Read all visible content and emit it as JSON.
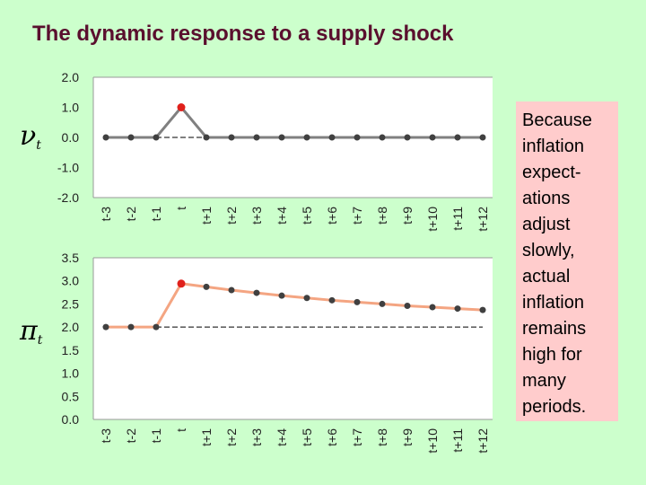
{
  "slide": {
    "title": "The dynamic response to a supply shock",
    "note": "Because inflation expect- ations adjust slowly, actual inflation remains high for many periods."
  },
  "colors": {
    "background": "#ccffcc",
    "title": "#5a0f2e",
    "shock_line": "#808080",
    "inflation_line": "#f4a582",
    "marker": "#404040",
    "highlight_marker": "#e0201b",
    "note_background": "#ffcccc"
  },
  "chart_data": [
    {
      "type": "line",
      "ylabel": "νt",
      "ylabel_main": "ν",
      "ylabel_sub": "t",
      "categories": [
        "t-3",
        "t-2",
        "t-1",
        "t",
        "t+1",
        "t+2",
        "t+3",
        "t+4",
        "t+5",
        "t+6",
        "t+7",
        "t+8",
        "t+9",
        "t+10",
        "t+11",
        "t+12"
      ],
      "values": [
        0,
        0,
        0,
        1,
        0,
        0,
        0,
        0,
        0,
        0,
        0,
        0,
        0,
        0,
        0,
        0
      ],
      "highlight_index": 3,
      "ylim": [
        -2,
        2
      ],
      "yticks": [
        2.0,
        1.0,
        0.0,
        -1.0,
        -2.0
      ],
      "yticklabels": [
        "2.0",
        "1.0",
        "0.0",
        "-1.0",
        "-2.0"
      ],
      "reference_line": 0,
      "grid": false
    },
    {
      "type": "line",
      "ylabel": "πt",
      "ylabel_main": "π",
      "ylabel_sub": "t",
      "categories": [
        "t-3",
        "t-2",
        "t-1",
        "t",
        "t+1",
        "t+2",
        "t+3",
        "t+4",
        "t+5",
        "t+6",
        "t+7",
        "t+8",
        "t+9",
        "t+10",
        "t+11",
        "t+12"
      ],
      "values": [
        2.0,
        2.0,
        2.0,
        2.94,
        2.87,
        2.8,
        2.74,
        2.68,
        2.63,
        2.58,
        2.54,
        2.5,
        2.46,
        2.43,
        2.4,
        2.37
      ],
      "highlight_index": 3,
      "ylim": [
        0,
        3.5
      ],
      "yticks": [
        3.5,
        3.0,
        2.5,
        2.0,
        1.5,
        1.0,
        0.5,
        0.0
      ],
      "yticklabels": [
        "3.5",
        "3.0",
        "2.5",
        "2.0",
        "1.5",
        "1.0",
        "0.5",
        "0.0"
      ],
      "reference_line": 2.0,
      "grid": false
    }
  ]
}
